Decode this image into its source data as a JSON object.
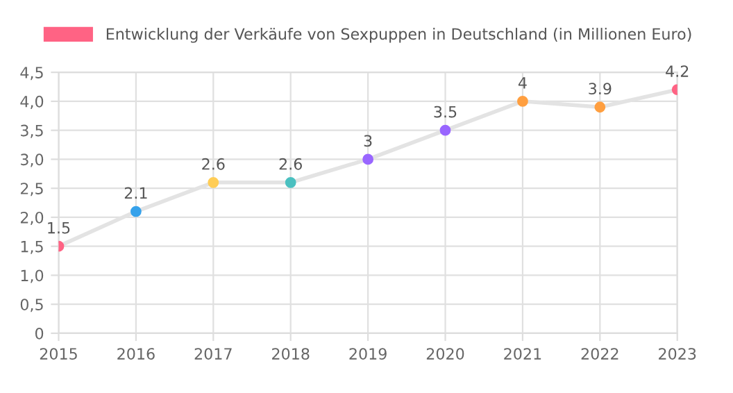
{
  "chart_data": {
    "type": "line",
    "categories": [
      "2015",
      "2016",
      "2017",
      "2018",
      "2019",
      "2020",
      "2021",
      "2022",
      "2023"
    ],
    "series": [
      {
        "name": "Entwicklung der Verkäufe von Sexpuppen in Deutschland (in Millionen Euro)",
        "color": "#e3e3e3",
        "colors": [
          "#ff6384",
          "#36a2eb",
          "#ffcd56",
          "#4bc0c0",
          "#9966ff",
          "#9966ff",
          "#ff9f40",
          "#ff9f40",
          "#ff6384"
        ],
        "values": [
          1.5,
          2.1,
          2.6,
          2.6,
          3,
          3.5,
          4,
          3.9,
          4.2
        ],
        "value_labels": [
          "1.5",
          "2.1",
          "2.6",
          "2.6",
          "3",
          "3.5",
          "4",
          "3.9",
          "4.2"
        ]
      }
    ],
    "ylim": [
      0,
      4.5
    ],
    "yticks": [
      {
        "value": 0,
        "label": "0"
      },
      {
        "value": 0.5,
        "label": "0,5"
      },
      {
        "value": 1,
        "label": "1,0"
      },
      {
        "value": 1.5,
        "label": "1,5"
      },
      {
        "value": 2,
        "label": "2,0"
      },
      {
        "value": 2.5,
        "label": "2,5"
      },
      {
        "value": 3,
        "label": "3,0"
      },
      {
        "value": 3.5,
        "label": "3,5"
      },
      {
        "value": 4,
        "label": "4,0"
      },
      {
        "value": 4.5,
        "label": "4,5"
      }
    ],
    "grid": true,
    "legend": "top",
    "marker": "circle",
    "line_style": "solid"
  }
}
